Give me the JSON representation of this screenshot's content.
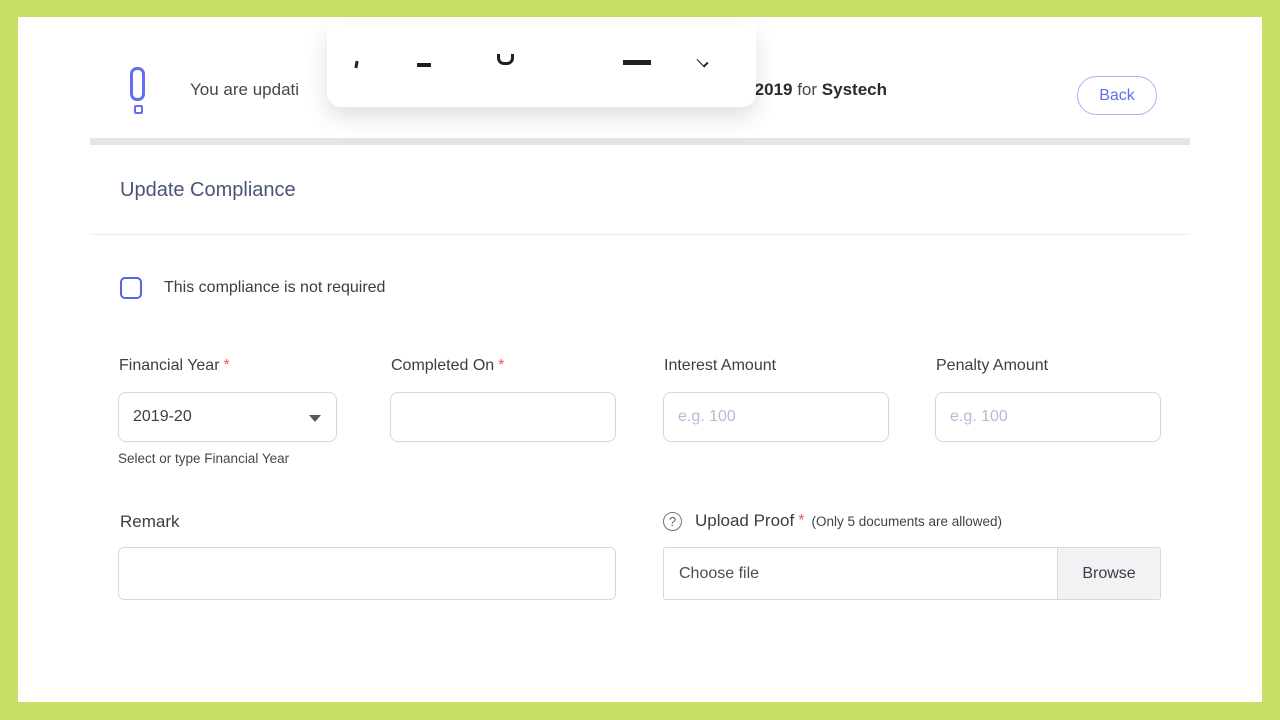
{
  "required_mark": "*",
  "icons": {
    "help_glyph": "?"
  },
  "banner": {
    "message_left": "You are updati",
    "message_right": {
      "year": "-2019",
      "middle": " for ",
      "company": "Systech"
    },
    "back_label": "Back"
  },
  "heading": "Update Compliance",
  "checkbox": {
    "label": "This compliance is not required",
    "checked": false
  },
  "form": {
    "financial_year": {
      "label": "Financial Year",
      "value": "2019-20",
      "helper": "Select or type Financial Year"
    },
    "completed_on": {
      "label": "Completed On",
      "value": ""
    },
    "interest_amount": {
      "label": "Interest Amount",
      "placeholder": "e.g. 100",
      "value": ""
    },
    "penalty_amount": {
      "label": "Penalty Amount",
      "placeholder": "e.g. 100",
      "value": ""
    },
    "remark": {
      "label": "Remark",
      "value": ""
    },
    "upload_proof": {
      "label": "Upload Proof",
      "note": "(Only 5 documents are allowed)",
      "file_text": "Choose file",
      "browse_label": "Browse"
    }
  },
  "colors": {
    "frame": "#c8df66",
    "accent": "#5a6cf0",
    "required": "#f25555"
  }
}
